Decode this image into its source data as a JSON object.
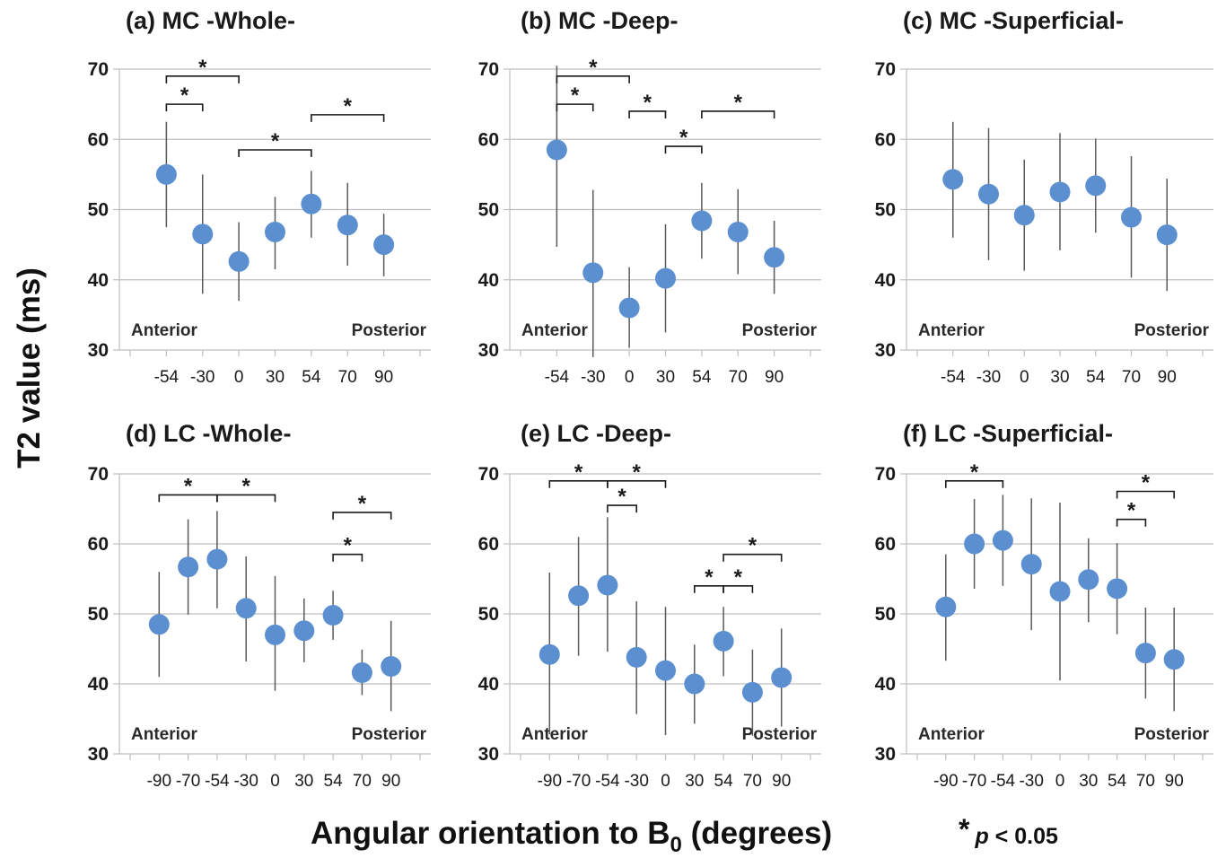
{
  "figure": {
    "ylabel": "T2 value (ms)",
    "xlabel_main": "Angular orientation to B",
    "xlabel_sub": "0",
    "xlabel_unit": " (degrees)",
    "significance_star": "*",
    "significance_p": "p",
    "significance_rest": " < 0.05"
  },
  "colors": {
    "marker": "#5b8fd0",
    "axis": "#bfbfbf",
    "errorbar": "#595959",
    "bracket": "#1a1a1a"
  },
  "chart_data": [
    {
      "type": "scatter",
      "title": "(a) MC -Whole-",
      "categories": [
        "-54",
        "-30",
        "0",
        "30",
        "54",
        "70",
        "90"
      ],
      "values": [
        55.0,
        46.5,
        42.6,
        46.8,
        50.8,
        47.8,
        45.0
      ],
      "error_low": [
        47.5,
        38.0,
        37.0,
        41.5,
        46.0,
        42.0,
        40.5
      ],
      "error_high": [
        62.5,
        55.0,
        48.2,
        51.8,
        55.5,
        53.8,
        49.4
      ],
      "significance": [
        {
          "from": "-54",
          "to": "-30",
          "y": 65.0
        },
        {
          "from": "-54",
          "to": "0",
          "y": 69.0
        },
        {
          "from": "0",
          "to": "54",
          "y": 58.5
        },
        {
          "from": "54",
          "to": "90",
          "y": 63.5
        }
      ],
      "ylim": [
        30,
        70
      ],
      "yticks": [
        "30",
        "40",
        "50",
        "60",
        "70"
      ],
      "left_note": "Anterior",
      "right_note": "Posterior"
    },
    {
      "type": "scatter",
      "title": "(b) MC -Deep-",
      "categories": [
        "-54",
        "-30",
        "0",
        "30",
        "54",
        "70",
        "90"
      ],
      "values": [
        58.5,
        41.0,
        36.0,
        40.2,
        48.4,
        46.8,
        43.2
      ],
      "error_low": [
        44.7,
        29.0,
        30.3,
        32.5,
        43.0,
        40.8,
        38.0
      ],
      "error_high": [
        70.5,
        52.8,
        41.8,
        47.9,
        53.8,
        52.9,
        48.4
      ],
      "significance": [
        {
          "from": "-54",
          "to": "-30",
          "y": 65.0
        },
        {
          "from": "-54",
          "to": "0",
          "y": 69.0
        },
        {
          "from": "0",
          "to": "30",
          "y": 64.0
        },
        {
          "from": "30",
          "to": "54",
          "y": 59.0
        },
        {
          "from": "54",
          "to": "90",
          "y": 64.0
        }
      ],
      "ylim": [
        30,
        70
      ],
      "yticks": [
        "30",
        "40",
        "50",
        "60",
        "70"
      ],
      "left_note": "Anterior",
      "right_note": "Posterior"
    },
    {
      "type": "scatter",
      "title": "(c) MC -Superficial-",
      "categories": [
        "-54",
        "-30",
        "0",
        "30",
        "54",
        "70",
        "90"
      ],
      "values": [
        54.3,
        52.2,
        49.2,
        52.5,
        53.4,
        48.9,
        46.4
      ],
      "error_low": [
        46.0,
        42.8,
        41.3,
        44.2,
        46.7,
        40.3,
        38.4
      ],
      "error_high": [
        62.5,
        61.6,
        57.1,
        60.9,
        60.1,
        57.6,
        54.4
      ],
      "significance": [],
      "ylim": [
        30,
        70
      ],
      "yticks": [
        "30",
        "40",
        "50",
        "60",
        "70"
      ],
      "left_note": "Anterior",
      "right_note": "Posterior"
    },
    {
      "type": "scatter",
      "title": "(d) LC -Whole-",
      "categories": [
        "-90",
        "-70",
        "-54",
        "-30",
        "0",
        "30",
        "54",
        "70",
        "90"
      ],
      "values": [
        48.5,
        56.7,
        57.8,
        50.8,
        47.0,
        47.6,
        49.8,
        41.6,
        42.5
      ],
      "error_low": [
        41.0,
        49.9,
        50.8,
        43.2,
        39.0,
        43.1,
        46.3,
        38.4,
        36.1
      ],
      "error_high": [
        56.0,
        63.5,
        64.7,
        58.2,
        55.4,
        52.2,
        53.3,
        44.9,
        49.0
      ],
      "significance": [
        {
          "from": "-90",
          "to": "-54",
          "y": 67.0
        },
        {
          "from": "-54",
          "to": "0",
          "y": 67.0
        },
        {
          "from": "54",
          "to": "70",
          "y": 58.5
        },
        {
          "from": "54",
          "to": "90",
          "y": 64.5
        }
      ],
      "ylim": [
        30,
        70
      ],
      "yticks": [
        "30",
        "40",
        "50",
        "60",
        "70"
      ],
      "left_note": "Anterior",
      "right_note": "Posterior"
    },
    {
      "type": "scatter",
      "title": "(e) LC -Deep-",
      "categories": [
        "-90",
        "-70",
        "-54",
        "-30",
        "0",
        "30",
        "54",
        "70",
        "90"
      ],
      "values": [
        44.2,
        52.6,
        54.1,
        43.8,
        41.9,
        40.0,
        46.1,
        38.8,
        40.9
      ],
      "error_low": [
        32.8,
        44.0,
        44.6,
        35.7,
        32.7,
        34.3,
        41.1,
        32.6,
        33.9
      ],
      "error_high": [
        55.9,
        61.0,
        63.8,
        51.8,
        51.0,
        45.6,
        51.0,
        44.9,
        47.9
      ],
      "significance": [
        {
          "from": "-90",
          "to": "-54",
          "y": 69.0
        },
        {
          "from": "-54",
          "to": "0",
          "y": 69.0
        },
        {
          "from": "-54",
          "to": "-30",
          "y": 65.5
        },
        {
          "from": "30",
          "to": "54",
          "y": 54.0
        },
        {
          "from": "54",
          "to": "70",
          "y": 54.0
        },
        {
          "from": "54",
          "to": "90",
          "y": 58.5
        }
      ],
      "ylim": [
        30,
        70
      ],
      "yticks": [
        "30",
        "40",
        "50",
        "60",
        "70"
      ],
      "left_note": "Anterior",
      "right_note": "Posterior"
    },
    {
      "type": "scatter",
      "title": "(f) LC -Superficial-",
      "categories": [
        "-90",
        "-70",
        "-54",
        "-30",
        "0",
        "30",
        "54",
        "70",
        "90"
      ],
      "values": [
        51.0,
        60.0,
        60.5,
        57.1,
        53.2,
        54.9,
        53.6,
        44.4,
        43.5
      ],
      "error_low": [
        43.3,
        53.6,
        54.0,
        47.7,
        40.5,
        48.8,
        47.1,
        37.9,
        36.1
      ],
      "error_high": [
        58.5,
        66.4,
        67.0,
        66.5,
        65.9,
        60.8,
        60.1,
        50.9,
        50.9
      ],
      "significance": [
        {
          "from": "-90",
          "to": "-54",
          "y": 69.0
        },
        {
          "from": "54",
          "to": "70",
          "y": 63.5
        },
        {
          "from": "54",
          "to": "90",
          "y": 67.5
        }
      ],
      "ylim": [
        30,
        70
      ],
      "yticks": [
        "30",
        "40",
        "50",
        "60",
        "70"
      ],
      "left_note": "Anterior",
      "right_note": "Posterior"
    }
  ]
}
